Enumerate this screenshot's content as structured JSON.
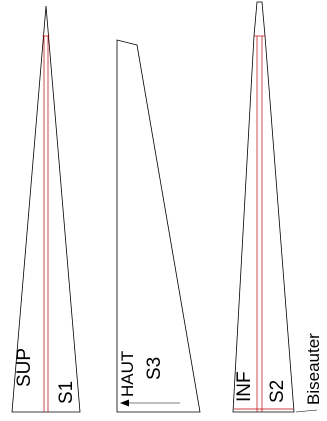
{
  "pieces": {
    "s1": {
      "name": "S1",
      "face": "SUP"
    },
    "s3": {
      "name": "S3",
      "direction": "HAUT"
    },
    "s2": {
      "name": "S2",
      "face": "INF"
    }
  },
  "edge_note": "Biseauter",
  "colors": {
    "outline": "#000000",
    "guide_line": "#c00000"
  }
}
